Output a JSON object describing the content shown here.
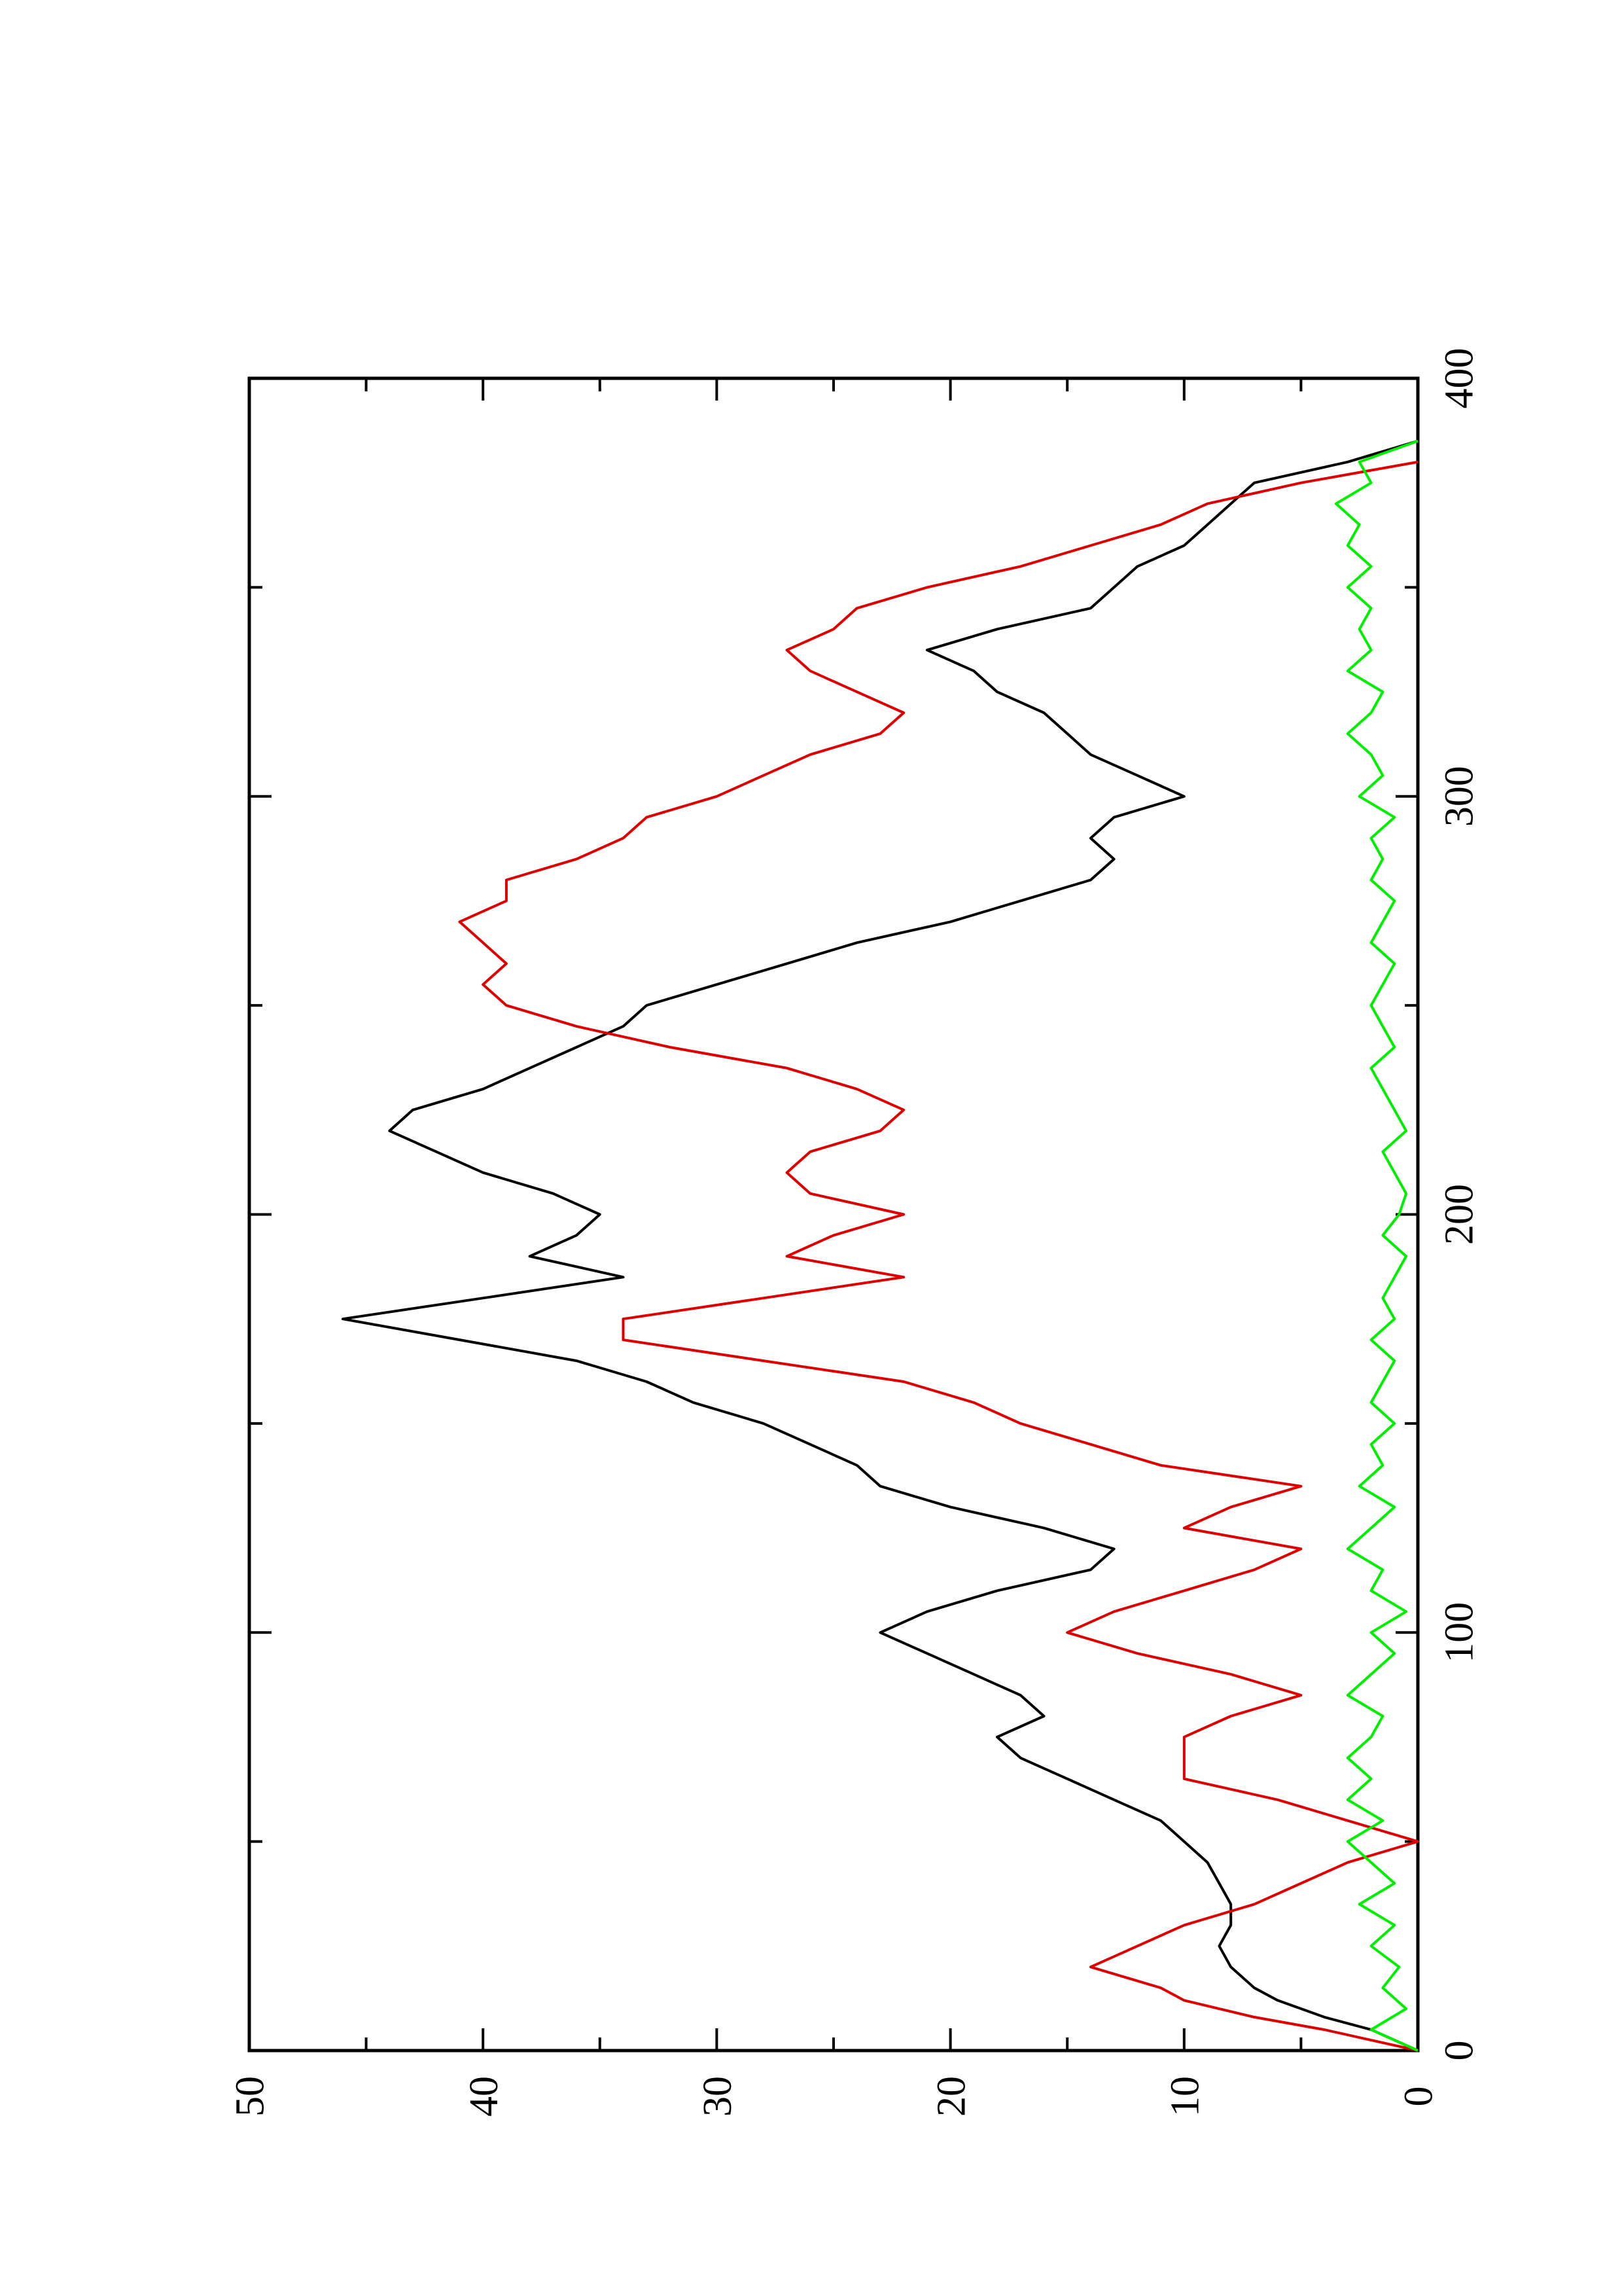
{
  "chart_data": {
    "type": "line",
    "orientation": "rotated-90-ccw",
    "title": "",
    "xlabel": "",
    "ylabel": "",
    "xlim": [
      0,
      400
    ],
    "ylim": [
      0,
      50
    ],
    "x_ticks": [
      0,
      100,
      200,
      300,
      400
    ],
    "y_ticks": [
      0,
      10,
      20,
      30,
      40,
      50
    ],
    "grid": false,
    "series": [
      {
        "color": "#000000",
        "x": [
          0,
          5,
          8,
          12,
          15,
          20,
          25,
          30,
          35,
          40,
          45,
          50,
          55,
          60,
          65,
          70,
          75,
          80,
          85,
          90,
          95,
          100,
          105,
          110,
          115,
          120,
          125,
          130,
          135,
          140,
          145,
          150,
          155,
          160,
          165,
          170,
          175,
          180,
          185,
          190,
          195,
          200,
          205,
          210,
          215,
          220,
          225,
          230,
          235,
          240,
          245,
          250,
          255,
          260,
          265,
          270,
          275,
          280,
          285,
          290,
          295,
          300,
          305,
          310,
          315,
          320,
          325,
          330,
          335,
          340,
          345,
          350,
          355,
          360,
          365,
          370,
          375,
          380,
          385
        ],
        "y": [
          0,
          2,
          4,
          6,
          7,
          8,
          8.5,
          8,
          8,
          8.5,
          9,
          10,
          11,
          13,
          15,
          17,
          18,
          16,
          17,
          19,
          21,
          23,
          21,
          18,
          14,
          13,
          16,
          20,
          23,
          24,
          26,
          28,
          31,
          33,
          36,
          41,
          46,
          40,
          34,
          38,
          36,
          35,
          37,
          40,
          42,
          44,
          43,
          40,
          38,
          36,
          34,
          33,
          30,
          27,
          24,
          20,
          17,
          14,
          13,
          14,
          13,
          10,
          12,
          14,
          15,
          16,
          18,
          19,
          21,
          18,
          14,
          13,
          12,
          10,
          9,
          8,
          7,
          3,
          0
        ]
      },
      {
        "color": "#dd0000",
        "x": [
          0,
          5,
          8,
          12,
          15,
          20,
          25,
          30,
          35,
          40,
          45,
          50,
          55,
          60,
          65,
          70,
          75,
          80,
          85,
          90,
          95,
          100,
          105,
          110,
          115,
          120,
          125,
          130,
          135,
          140,
          145,
          150,
          155,
          160,
          165,
          170,
          175,
          180,
          185,
          190,
          195,
          200,
          205,
          210,
          215,
          220,
          225,
          230,
          235,
          240,
          245,
          250,
          255,
          260,
          265,
          270,
          275,
          280,
          285,
          290,
          295,
          300,
          305,
          310,
          315,
          320,
          325,
          330,
          335,
          340,
          345,
          350,
          355,
          360,
          365,
          370,
          375,
          380
        ],
        "y": [
          0,
          4,
          7,
          10,
          11,
          14,
          12,
          10,
          7,
          5,
          3,
          0,
          3,
          6,
          10,
          10,
          10,
          8,
          5,
          8,
          12,
          15,
          13,
          10,
          7,
          5,
          10,
          8,
          5,
          11,
          14,
          17,
          19,
          22,
          28,
          34,
          34,
          28,
          22,
          27,
          25,
          22,
          26,
          27,
          26,
          23,
          22,
          24,
          27,
          32,
          36,
          39,
          40,
          39,
          40,
          41,
          39,
          39,
          36,
          34,
          33,
          30,
          28,
          26,
          23,
          22,
          24,
          26,
          27,
          25,
          24,
          21,
          17,
          14,
          11,
          9,
          5,
          0
        ]
      },
      {
        "color": "#00ee00",
        "x": [
          0,
          5,
          10,
          15,
          20,
          25,
          30,
          35,
          40,
          45,
          50,
          55,
          60,
          65,
          70,
          75,
          80,
          85,
          90,
          95,
          100,
          105,
          110,
          115,
          120,
          125,
          130,
          135,
          140,
          145,
          150,
          155,
          160,
          165,
          170,
          175,
          180,
          185,
          190,
          195,
          200,
          205,
          210,
          215,
          220,
          225,
          230,
          235,
          240,
          245,
          250,
          255,
          260,
          265,
          270,
          275,
          280,
          285,
          290,
          295,
          300,
          305,
          310,
          315,
          320,
          325,
          330,
          335,
          340,
          345,
          350,
          355,
          360,
          365,
          370,
          375,
          380,
          385
        ],
        "y": [
          0,
          2,
          0.5,
          1.5,
          0.8,
          2,
          1,
          2.5,
          1,
          2,
          3,
          1.5,
          3,
          2,
          3,
          2,
          1.5,
          3,
          2,
          1,
          2,
          0.5,
          2,
          1.5,
          3,
          2,
          1,
          2.5,
          1.5,
          2,
          1,
          2,
          1.5,
          1,
          2,
          1,
          1.5,
          1,
          0.5,
          1.5,
          0.8,
          0.5,
          1,
          1.5,
          0.5,
          1,
          1.5,
          2,
          1,
          1.5,
          2,
          1.5,
          1,
          2,
          1.5,
          1,
          2,
          1.5,
          2,
          1,
          2.5,
          1.5,
          2,
          3,
          2,
          1.5,
          3,
          2,
          2.5,
          2,
          3,
          2,
          3,
          2.5,
          3.5,
          2,
          2.5,
          0
        ]
      }
    ]
  }
}
